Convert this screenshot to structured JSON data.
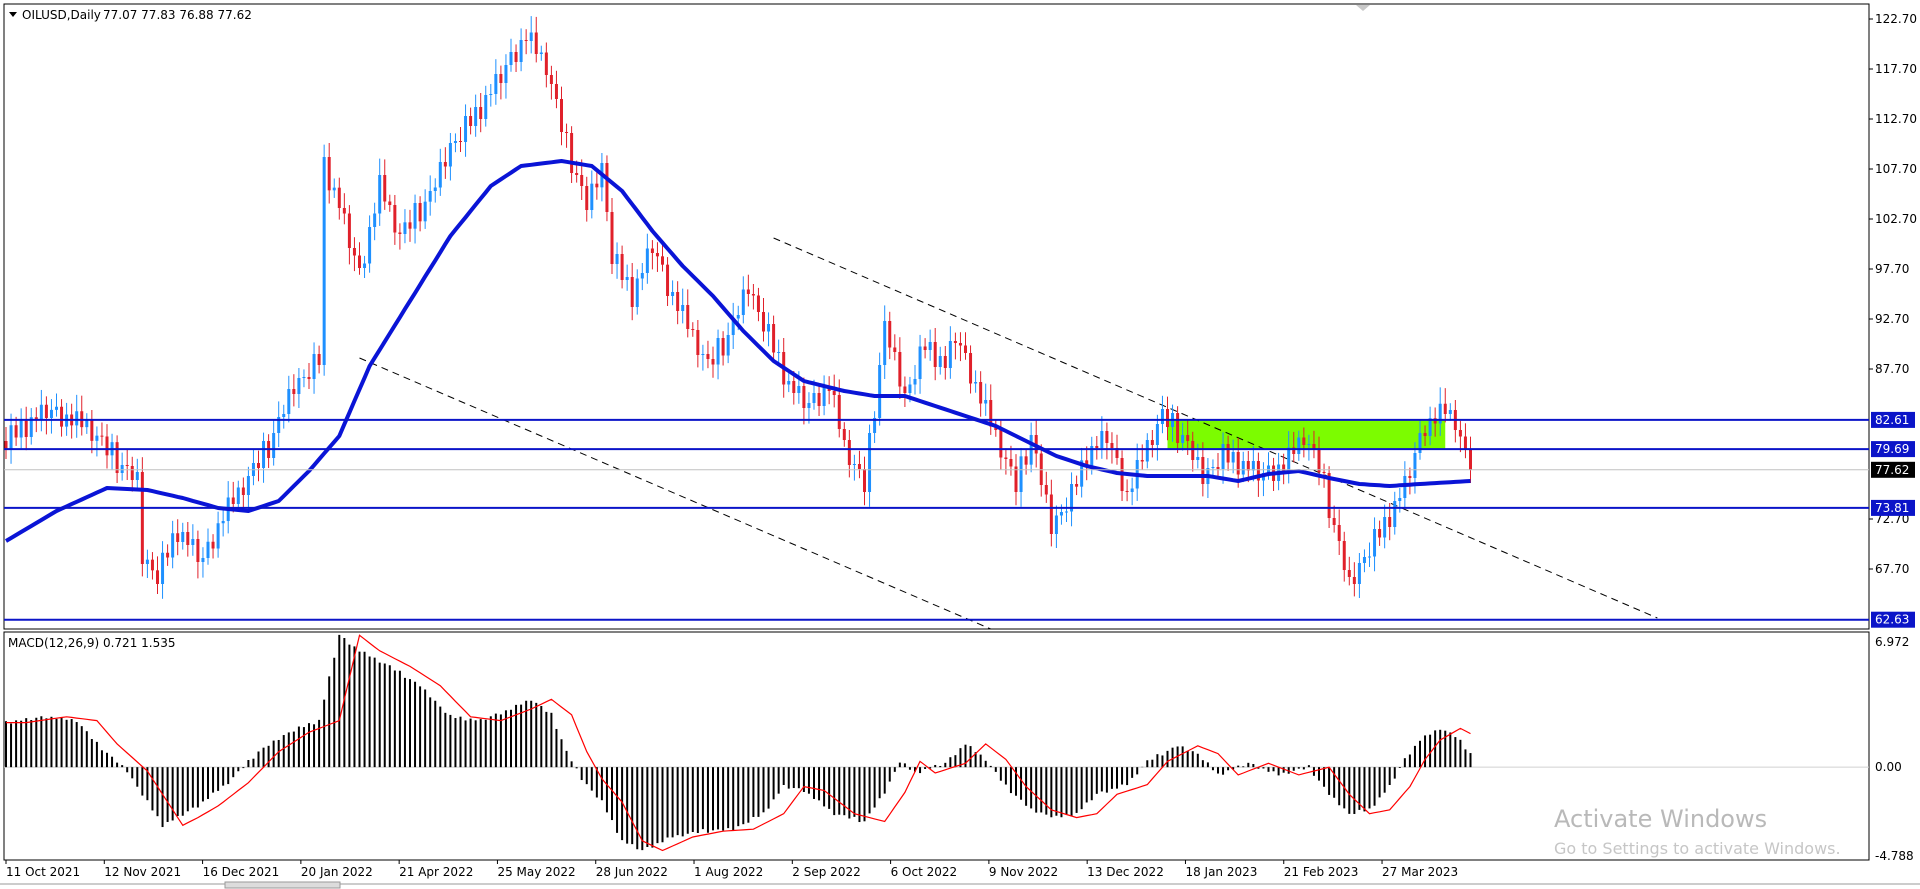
{
  "header": {
    "symbol": "OILUSD,Daily",
    "ohlc": "77.07 77.83 76.88 77.62"
  },
  "macd_header": {
    "label": "MACD(12,26,9)",
    "values": "0.721 1.535"
  },
  "watermark": {
    "line1": "Activate Windows",
    "line2": "Go to Settings to activate Windows."
  },
  "colors": {
    "up_candle": "#1e90ff",
    "down_candle": "#e0202a",
    "ma_line": "#0a14d6",
    "level_line": "#0b14c8",
    "zone_fill": "#7cfc00",
    "macd_hist": "#000000",
    "macd_signal": "#ff0000"
  },
  "chart_data": [
    {
      "type": "candlestick",
      "ylim": [
        61.7,
        124.2
      ],
      "yticks": [
        "122.70",
        "117.70",
        "112.70",
        "107.70",
        "102.70",
        "97.70",
        "92.70",
        "87.70",
        "72.70",
        "67.70"
      ],
      "xticks": [
        "11 Oct 2021",
        "12 Nov 2021",
        "16 Dec 2021",
        "20 Jan 2022",
        "21 Apr 2022",
        "25 May 2022",
        "28 Jun 2022",
        "1 Aug 2022",
        "2 Sep 2022",
        "6 Oct 2022",
        "9 Nov 2022",
        "13 Dec 2022",
        "18 Jan 2023",
        "21 Feb 2023",
        "27 Mar 2023"
      ],
      "price_path": [
        [
          0,
          80.5
        ],
        [
          8,
          83.5
        ],
        [
          16,
          82
        ],
        [
          22,
          78.5
        ],
        [
          26,
          76.5
        ],
        [
          27,
          69
        ],
        [
          30,
          67
        ],
        [
          34,
          71.5
        ],
        [
          39,
          68.5
        ],
        [
          43,
          73
        ],
        [
          47,
          76
        ],
        [
          52,
          80
        ],
        [
          57,
          86
        ],
        [
          62,
          88.5
        ],
        [
          63,
          108
        ],
        [
          66,
          104
        ],
        [
          70,
          97
        ],
        [
          74,
          106
        ],
        [
          78,
          101
        ],
        [
          84,
          105
        ],
        [
          88,
          110
        ],
        [
          93,
          113
        ],
        [
          98,
          117
        ],
        [
          103,
          121
        ],
        [
          107,
          118
        ],
        [
          111,
          110
        ],
        [
          115,
          104
        ],
        [
          118,
          108
        ],
        [
          120,
          99
        ],
        [
          124,
          95
        ],
        [
          128,
          100
        ],
        [
          131,
          96
        ],
        [
          135,
          92
        ],
        [
          139,
          88
        ],
        [
          143,
          91
        ],
        [
          147,
          96
        ],
        [
          151,
          91
        ],
        [
          155,
          86
        ],
        [
          159,
          84
        ],
        [
          163,
          86
        ],
        [
          166,
          80
        ],
        [
          170,
          76
        ],
        [
          174,
          92
        ],
        [
          178,
          85
        ],
        [
          182,
          90
        ],
        [
          186,
          88
        ],
        [
          188,
          91
        ],
        [
          192,
          86
        ],
        [
          196,
          81
        ],
        [
          200,
          76
        ],
        [
          203,
          81
        ],
        [
          207,
          72
        ],
        [
          211,
          75
        ],
        [
          214,
          79
        ],
        [
          218,
          81
        ],
        [
          222,
          75
        ],
        [
          226,
          80
        ],
        [
          229,
          83
        ],
        [
          233,
          81
        ],
        [
          237,
          77
        ],
        [
          241,
          79
        ],
        [
          245,
          78
        ],
        [
          249,
          77
        ],
        [
          253,
          78
        ],
        [
          257,
          81
        ],
        [
          260,
          78
        ],
        [
          263,
          72
        ],
        [
          266,
          66
        ],
        [
          269,
          69
        ],
        [
          273,
          72
        ],
        [
          277,
          76
        ],
        [
          281,
          82
        ],
        [
          285,
          83.5
        ],
        [
          287,
          82.5
        ],
        [
          289,
          79
        ],
        [
          290,
          77.62
        ]
      ],
      "price_noise": [
        -0.8,
        1.2,
        -0.4,
        0.9,
        -1.1,
        0.5,
        -0.2,
        1.0,
        -0.7,
        0.3,
        0.8,
        -1.0,
        0.4,
        -0.5,
        1.1,
        -0.3,
        0.6,
        -0.9,
        0.2,
        0.7,
        -0.6,
        1.3,
        -1.2,
        0.1,
        0.5,
        -0.4,
        0.9,
        -0.8,
        0.3,
        -0.1
      ],
      "ma_path": [
        [
          0,
          70.5
        ],
        [
          10,
          73.5
        ],
        [
          20,
          75.8
        ],
        [
          28,
          75.6
        ],
        [
          35,
          74.8
        ],
        [
          42,
          73.8
        ],
        [
          48,
          73.5
        ],
        [
          54,
          74.5
        ],
        [
          60,
          77.5
        ],
        [
          66,
          81
        ],
        [
          72,
          88
        ],
        [
          80,
          94.5
        ],
        [
          88,
          101
        ],
        [
          96,
          106
        ],
        [
          102,
          108
        ],
        [
          110,
          108.5
        ],
        [
          116,
          108
        ],
        [
          122,
          105.5
        ],
        [
          128,
          101.5
        ],
        [
          134,
          98
        ],
        [
          140,
          95
        ],
        [
          146,
          91.5
        ],
        [
          152,
          88.5
        ],
        [
          158,
          86.5
        ],
        [
          166,
          85.5
        ],
        [
          172,
          85
        ],
        [
          178,
          85
        ],
        [
          184,
          84
        ],
        [
          190,
          83
        ],
        [
          196,
          82
        ],
        [
          202,
          80.5
        ],
        [
          208,
          79
        ],
        [
          214,
          78
        ],
        [
          220,
          77.3
        ],
        [
          226,
          77
        ],
        [
          232,
          77
        ],
        [
          238,
          77
        ],
        [
          244,
          76.5
        ],
        [
          250,
          77.2
        ],
        [
          256,
          77.5
        ],
        [
          262,
          76.8
        ],
        [
          268,
          76.2
        ],
        [
          274,
          76
        ],
        [
          280,
          76.2
        ],
        [
          290,
          76.5
        ]
      ],
      "levels": [
        {
          "value": 82.61,
          "label": "82.61"
        },
        {
          "value": 79.69,
          "label": "79.69"
        },
        {
          "value": 73.81,
          "label": "73.81"
        },
        {
          "value": 62.63,
          "label": "62.63"
        }
      ],
      "current_price": {
        "value": 77.62,
        "label": "77.62"
      },
      "zone": {
        "x0": 230,
        "x1": 285,
        "y0": 79.7,
        "y1": 82.6
      },
      "trendlines": [
        {
          "x0": 70,
          "y0": 88.8,
          "x1": 195,
          "y1": 61.7
        },
        {
          "x0": 152,
          "y0": 100.8,
          "x1": 327,
          "y1": 62.8
        }
      ]
    },
    {
      "type": "histogram",
      "ylim": [
        -4.788,
        6.972
      ],
      "yticks": [
        "6.972",
        "0.00",
        "-4.788"
      ],
      "hist_path": [
        [
          0,
          2.3
        ],
        [
          8,
          2.6
        ],
        [
          14,
          2.4
        ],
        [
          18,
          1.2
        ],
        [
          24,
          -0.2
        ],
        [
          28,
          -1.8
        ],
        [
          31,
          -3.0
        ],
        [
          34,
          -2.6
        ],
        [
          38,
          -2.0
        ],
        [
          44,
          -0.8
        ],
        [
          50,
          0.8
        ],
        [
          56,
          1.8
        ],
        [
          62,
          2.4
        ],
        [
          66,
          6.8
        ],
        [
          70,
          6.0
        ],
        [
          76,
          5.2
        ],
        [
          82,
          4.2
        ],
        [
          88,
          2.6
        ],
        [
          94,
          2.4
        ],
        [
          100,
          3.0
        ],
        [
          104,
          3.5
        ],
        [
          108,
          2.7
        ],
        [
          111,
          0.8
        ],
        [
          114,
          -0.6
        ],
        [
          118,
          -1.8
        ],
        [
          122,
          -3.8
        ],
        [
          126,
          -4.3
        ],
        [
          132,
          -3.6
        ],
        [
          138,
          -3.3
        ],
        [
          144,
          -3.2
        ],
        [
          150,
          -2.4
        ],
        [
          154,
          -1.0
        ],
        [
          158,
          -1.2
        ],
        [
          164,
          -2.4
        ],
        [
          170,
          -2.8
        ],
        [
          174,
          -1.3
        ],
        [
          177,
          0.3
        ],
        [
          180,
          -0.3
        ],
        [
          186,
          0.2
        ],
        [
          190,
          1.2
        ],
        [
          194,
          0.4
        ],
        [
          198,
          -1.0
        ],
        [
          203,
          -2.2
        ],
        [
          208,
          -2.6
        ],
        [
          212,
          -2.4
        ],
        [
          216,
          -1.4
        ],
        [
          222,
          -0.9
        ],
        [
          226,
          0.3
        ],
        [
          232,
          1.1
        ],
        [
          236,
          0.7
        ],
        [
          240,
          -0.4
        ],
        [
          246,
          0.2
        ],
        [
          252,
          -0.4
        ],
        [
          258,
          0.0
        ],
        [
          262,
          -1.4
        ],
        [
          266,
          -2.4
        ],
        [
          270,
          -2.2
        ],
        [
          274,
          -1.0
        ],
        [
          277,
          0.4
        ],
        [
          280,
          1.4
        ],
        [
          284,
          2.0
        ],
        [
          287,
          1.6
        ],
        [
          290,
          0.72
        ]
      ],
      "signal_lag": 4
    }
  ]
}
